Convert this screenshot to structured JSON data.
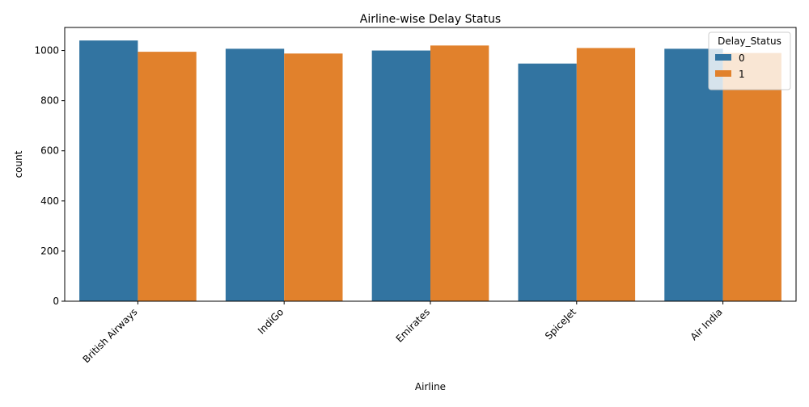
{
  "chart_data": {
    "type": "bar",
    "title": "Airline-wise Delay Status",
    "xlabel": "Airline",
    "ylabel": "count",
    "categories": [
      "British Airways",
      "IndiGo",
      "Emirates",
      "SpiceJet",
      "Air India"
    ],
    "series": [
      {
        "name": "0",
        "values": [
          1040,
          1007,
          1000,
          948,
          1007
        ],
        "color": "#3274a1"
      },
      {
        "name": "1",
        "values": [
          995,
          988,
          1020,
          1010,
          990
        ],
        "color": "#e1812c"
      }
    ],
    "ylim": [
      0,
      1092
    ],
    "yticks": [
      0,
      200,
      400,
      600,
      800,
      1000
    ],
    "legend": {
      "title": "Delay_Status",
      "placement": "upper-right"
    },
    "grid": false
  }
}
